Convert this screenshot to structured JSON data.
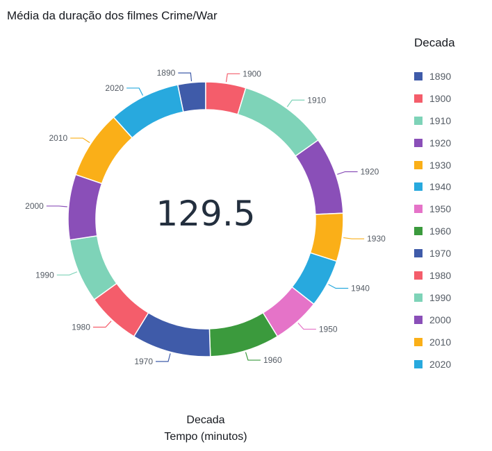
{
  "chart_data": {
    "type": "pie",
    "variant": "donut",
    "title": "Média da duração dos filmes Crime/War",
    "center_value": "129.5",
    "legend_title": "Decada",
    "legend_position": "right",
    "x_label": "Decada",
    "y_label": "Tempo (minutos)",
    "categories": [
      "1890",
      "1900",
      "1910",
      "1920",
      "1930",
      "1940",
      "1950",
      "1960",
      "1970",
      "1980",
      "1990",
      "2000",
      "2010",
      "2020"
    ],
    "values": [
      4.5,
      6.5,
      14.5,
      12.5,
      7.8,
      7.8,
      7.8,
      11.3,
      12.8,
      8.7,
      10.4,
      10.6,
      11.1,
      11.6
    ],
    "colors": [
      "#3f5ba9",
      "#f45d6b",
      "#7ed3b8",
      "#8a4fb8",
      "#faaf18",
      "#28a9de",
      "#e573c8",
      "#3b9a3d",
      "#3f5ba9",
      "#f45d6b",
      "#7ed3b8",
      "#8a4fb8",
      "#faaf18",
      "#28a9de"
    ]
  }
}
